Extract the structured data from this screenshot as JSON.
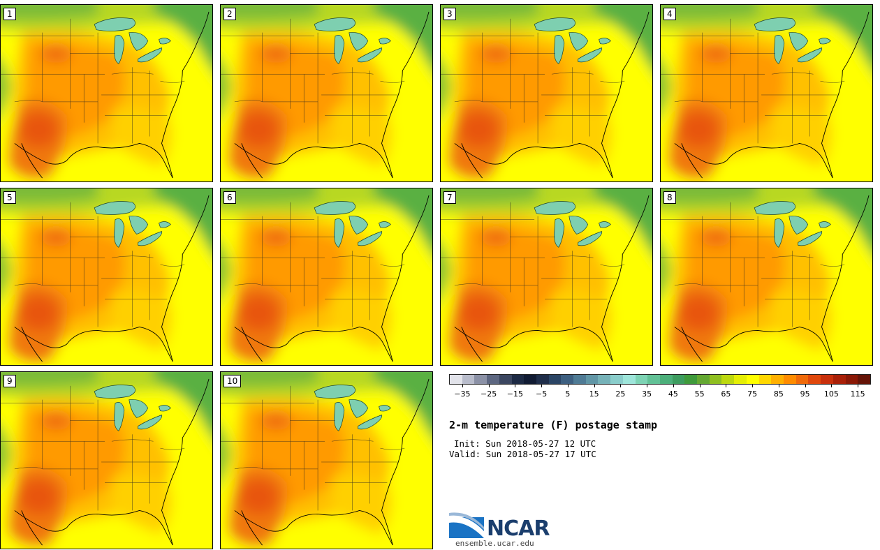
{
  "panels": [
    {
      "label": "1"
    },
    {
      "label": "2"
    },
    {
      "label": "3"
    },
    {
      "label": "4"
    },
    {
      "label": "5"
    },
    {
      "label": "6"
    },
    {
      "label": "7"
    },
    {
      "label": "8"
    },
    {
      "label": "9"
    },
    {
      "label": "10"
    }
  ],
  "colorbar": {
    "colors": [
      "#e2e3ea",
      "#b8bccb",
      "#8b91a6",
      "#5d6781",
      "#3b4660",
      "#1d2a44",
      "#111b33",
      "#1f2e4a",
      "#2b4565",
      "#3d5f80",
      "#4f7b95",
      "#6196a6",
      "#76b2b8",
      "#8acdcb",
      "#9ee5da",
      "#7dd3b4",
      "#62c196",
      "#4caf7a",
      "#3d9c5f",
      "#3f9a3b",
      "#64a832",
      "#8fbf20",
      "#bcd80f",
      "#e5ee05",
      "#ffff00",
      "#ffd700",
      "#ffb000",
      "#ff8c00",
      "#f06a0a",
      "#e0480c",
      "#c8300c",
      "#a92008",
      "#8a1806",
      "#651408"
    ],
    "tick_labels": [
      "−35",
      "−25",
      "−15",
      "−5",
      "5",
      "15",
      "25",
      "35",
      "45",
      "55",
      "65",
      "75",
      "85",
      "95",
      "105",
      "115"
    ],
    "min": -40,
    "max": 120
  },
  "title": "2-m temperature (F) postage stamp",
  "init": "Init: Sun 2018-05-27 12 UTC",
  "valid": "Valid: Sun 2018-05-27 17 UTC",
  "logo": {
    "text": "NCAR",
    "url": "ensemble.ucar.edu"
  }
}
